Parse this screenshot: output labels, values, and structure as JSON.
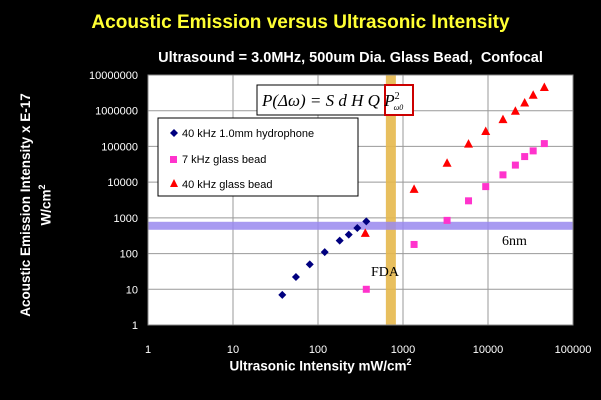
{
  "chart_data": {
    "type": "scatter",
    "title": "Acoustic Emission versus Ultrasonic Intensity",
    "subtitle": "Ultrasound = 3.0MHz, 500um Dia. Glass Bead,  Confocal",
    "xlabel": "Ultrasonic Intensity mW/cm",
    "xlabel_sup": "2",
    "ylabel_line1": "Acoustic Emission Intensity x E-17",
    "ylabel_line2": "W/cm",
    "ylabel_sup": "2",
    "xscale": "log",
    "yscale": "log",
    "xlim": [
      1,
      100000
    ],
    "ylim": [
      1,
      10000000
    ],
    "x_ticks": [
      1,
      10,
      100,
      1000,
      10000,
      100000
    ],
    "x_tick_labels": [
      "1",
      "10",
      "100",
      "1000",
      "10000",
      "100000"
    ],
    "y_ticks": [
      1,
      10,
      100,
      1000,
      10000,
      100000,
      1000000,
      10000000
    ],
    "y_tick_labels": [
      "1",
      "10",
      "100",
      "1000",
      "10000",
      "100000",
      "1000000",
      "10000000"
    ],
    "grid": true,
    "legend_placement": "upper-left",
    "formula": {
      "lhs": "P(Δω) = S d H Q P",
      "sup": "2",
      "sub": "ω0"
    },
    "series": [
      {
        "name": "40 kHz 1.0mm hydrophone",
        "marker": "diamond",
        "color": "#00007f",
        "x": [
          38,
          55,
          80,
          120,
          180,
          230,
          290,
          370
        ],
        "y": [
          7,
          22,
          50,
          110,
          230,
          340,
          520,
          800
        ]
      },
      {
        "name": "7 kHz glass bead",
        "marker": "square",
        "color": "#ff33cc",
        "x": [
          370,
          1350,
          3300,
          5900,
          9400,
          15000,
          21000,
          27000,
          34000,
          46000
        ],
        "y": [
          10,
          180,
          850,
          3000,
          7500,
          16000,
          30000,
          52000,
          75000,
          120000
        ]
      },
      {
        "name": "40 kHz glass bead",
        "marker": "triangle",
        "color": "#ff0000",
        "x": [
          360,
          1350,
          3300,
          5900,
          9400,
          15000,
          21000,
          27000,
          34000,
          46000
        ],
        "y": [
          380,
          6500,
          35000,
          120000,
          270000,
          580000,
          1000000,
          1700000,
          2800000,
          4600000
        ]
      }
    ],
    "annotations": [
      {
        "label": "FDA",
        "type": "vertical-band",
        "x": 720,
        "color": "#e6b84d"
      },
      {
        "label": "6nm",
        "type": "horizontal-band",
        "y": 600,
        "color": "#9988ee"
      }
    ]
  }
}
